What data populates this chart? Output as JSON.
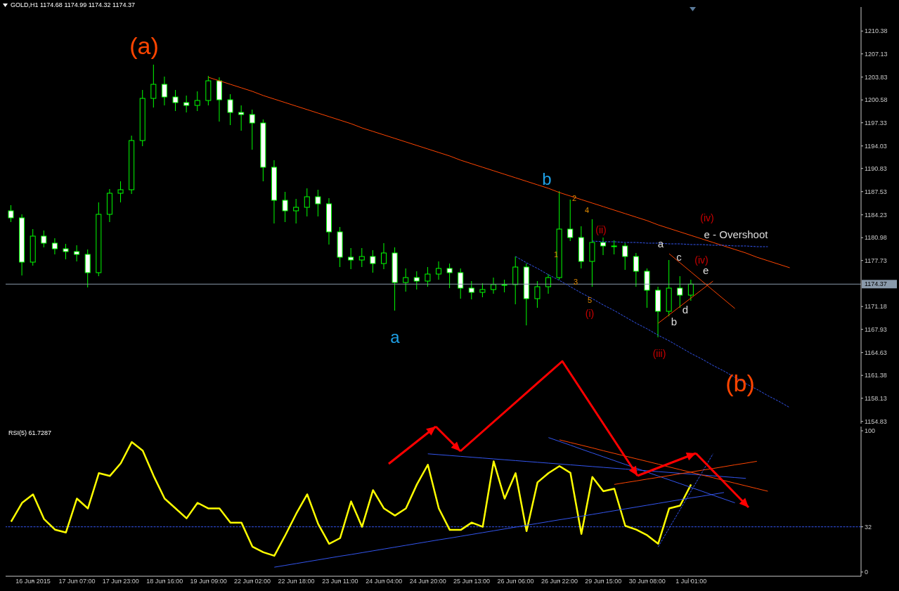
{
  "chart_data": [
    {
      "type": "candlestick",
      "color": "#00ff00",
      "annotations": [
        "GOLD,H1 1174.68 1174.99 1174.32 1174.37",
        "(a)",
        "a",
        "b",
        "(b)",
        "1",
        "2",
        "3",
        "4",
        "5",
        "(i)",
        "(ii)",
        "(iii)",
        "(iv)",
        "(iv)",
        "a",
        "b",
        "c",
        "d",
        {
          "text": "e",
          "x": "1 Jul 01:00",
          "y": 1175.8
        },
        "e - Overshoot"
      ],
      "categories": [
        null,
        null,
        "16 Jun 2015",
        null,
        null,
        null,
        "17 Jun 07:00",
        null,
        null,
        null,
        "17 Jun 23:00",
        null,
        null,
        null,
        "18 Jun 16:00",
        null,
        null,
        null,
        "19 Jun 09:00",
        null,
        null,
        null,
        "22 Jun 02:00",
        null,
        null,
        null,
        "22 Jun 18:00",
        null,
        null,
        null,
        "23 Jun 11:00",
        null,
        null,
        null,
        "24 Jun 04:00",
        null,
        null,
        null,
        "24 Jun 20:00",
        null,
        null,
        null,
        "25 Jun 13:00",
        null,
        null,
        null,
        "26 Jun 06:00",
        null,
        null,
        null,
        "26 Jun 22:00",
        null,
        null,
        null,
        "29 Jun 15:00",
        null,
        null,
        null,
        "30 Jun 08:00",
        null,
        null,
        null,
        "1 Jul 01:00",
        null,
        null,
        null,
        null,
        null,
        null,
        null,
        null,
        null,
        null,
        null,
        null,
        null,
        null,
        null
      ],
      "ohlc": [
        [
          1184.8,
          1185.6,
          1183.2,
          1183.8
        ],
        [
          1183.8,
          1184.3,
          1175.6,
          1177.5
        ],
        [
          1177.5,
          1182.2,
          1177.0,
          1181.2
        ],
        [
          1181.2,
          1182.0,
          1179.6,
          1180.2
        ],
        [
          1180.2,
          1180.9,
          1178.6,
          1179.4
        ],
        [
          1179.4,
          1180.1,
          1177.9,
          1179.0
        ],
        [
          1179.0,
          1179.9,
          1177.6,
          1178.6
        ],
        [
          1178.6,
          1179.3,
          1173.9,
          1176.0
        ],
        [
          1176.0,
          1186.0,
          1175.5,
          1184.3
        ],
        [
          1184.3,
          1187.9,
          1183.2,
          1187.3
        ],
        [
          1187.3,
          1189.0,
          1186.0,
          1187.8
        ],
        [
          1187.8,
          1195.5,
          1187.2,
          1194.8
        ],
        [
          1194.8,
          1202.0,
          1194.0,
          1200.8
        ],
        [
          1200.8,
          1205.6,
          1199.5,
          1202.8
        ],
        [
          1202.8,
          1203.9,
          1199.8,
          1201.0
        ],
        [
          1201.0,
          1202.0,
          1199.0,
          1200.2
        ],
        [
          1200.2,
          1201.2,
          1198.8,
          1199.8
        ],
        [
          1199.8,
          1201.8,
          1199.0,
          1200.5
        ],
        [
          1200.5,
          1204.0,
          1199.8,
          1203.3
        ],
        [
          1203.3,
          1203.8,
          1197.5,
          1200.6
        ],
        [
          1200.6,
          1201.4,
          1197.0,
          1198.8
        ],
        [
          1198.8,
          1199.8,
          1196.2,
          1198.5
        ],
        [
          1198.5,
          1199.2,
          1193.5,
          1197.3
        ],
        [
          1197.3,
          1197.8,
          1189.0,
          1191.0
        ],
        [
          1191.0,
          1192.0,
          1183.0,
          1186.3
        ],
        [
          1186.3,
          1187.5,
          1183.2,
          1184.8
        ],
        [
          1184.8,
          1186.5,
          1183.0,
          1185.3
        ],
        [
          1185.3,
          1188.0,
          1184.0,
          1186.8
        ],
        [
          1186.8,
          1187.8,
          1184.0,
          1185.8
        ],
        [
          1185.8,
          1186.6,
          1180.0,
          1181.8
        ],
        [
          1181.8,
          1182.5,
          1176.8,
          1178.2
        ],
        [
          1178.2,
          1179.5,
          1176.5,
          1177.8
        ],
        [
          1177.8,
          1179.5,
          1176.8,
          1178.3
        ],
        [
          1178.3,
          1179.2,
          1176.0,
          1177.3
        ],
        [
          1177.3,
          1180.2,
          1176.5,
          1178.8
        ],
        [
          1178.8,
          1179.6,
          1170.6,
          1174.6
        ],
        [
          1174.6,
          1176.6,
          1173.3,
          1175.3
        ],
        [
          1175.3,
          1176.2,
          1173.6,
          1174.8
        ],
        [
          1174.8,
          1176.8,
          1174.0,
          1175.8
        ],
        [
          1175.8,
          1177.6,
          1175.0,
          1176.6
        ],
        [
          1176.6,
          1177.3,
          1173.8,
          1176.0
        ],
        [
          1176.0,
          1176.6,
          1172.3,
          1173.8
        ],
        [
          1173.8,
          1174.8,
          1172.2,
          1173.2
        ],
        [
          1173.2,
          1174.5,
          1172.5,
          1173.6
        ],
        [
          1173.6,
          1175.3,
          1173.0,
          1174.3
        ],
        [
          1174.3,
          1175.0,
          1173.2,
          1174.3
        ],
        [
          1174.3,
          1178.3,
          1171.5,
          1176.8
        ],
        [
          1176.8,
          1177.3,
          1168.5,
          1172.3
        ],
        [
          1172.3,
          1174.8,
          1171.0,
          1174.0
        ],
        [
          1174.0,
          1175.8,
          1173.0,
          1175.3
        ],
        [
          1175.3,
          1187.6,
          1175.0,
          1182.2
        ],
        [
          1182.2,
          1186.4,
          1180.5,
          1181.0
        ],
        [
          1181.0,
          1182.6,
          1176.6,
          1177.6
        ],
        [
          1177.6,
          1183.6,
          1174.0,
          1180.3
        ],
        [
          1180.3,
          1181.0,
          1178.5,
          1179.8
        ],
        [
          1179.8,
          1180.6,
          1178.6,
          1179.8
        ],
        [
          1179.8,
          1180.2,
          1176.4,
          1178.3
        ],
        [
          1178.3,
          1178.8,
          1174.0,
          1176.2
        ],
        [
          1176.2,
          1176.6,
          1171.0,
          1173.5
        ],
        [
          1173.5,
          1174.0,
          1166.8,
          1170.5
        ],
        [
          1170.5,
          1177.8,
          1169.8,
          1173.8
        ],
        [
          1173.8,
          1175.5,
          1171.0,
          1172.8
        ],
        [
          1172.8,
          1175.0,
          1172.0,
          1174.37
        ],
        null,
        null,
        null,
        null,
        null,
        null,
        null,
        null,
        null,
        null,
        null,
        null,
        null,
        null,
        null
      ],
      "series": [
        {
          "type": "line",
          "color": "#ff4500",
          "values": [
            null,
            null,
            null,
            null,
            null,
            null,
            null,
            null,
            null,
            null,
            null,
            null,
            null,
            null,
            null,
            null,
            null,
            null,
            1203.8,
            1203.3,
            1202.8,
            1202.3,
            1201.8,
            1201.2,
            1200.7,
            1200.2,
            1199.7,
            1199.2,
            1198.7,
            1198.2,
            1197.7,
            1197.2,
            1196.6,
            1196.1,
            1195.6,
            1195.1,
            1194.6,
            1194.1,
            1193.6,
            1193.1,
            1192.6,
            1192.0,
            1191.5,
            1191.0,
            1190.5,
            1190.0,
            1189.5,
            1189.0,
            1188.5,
            1188.0,
            1187.4,
            1186.9,
            1186.4,
            1185.9,
            1185.4,
            1184.9,
            1184.4,
            1183.9,
            1183.4,
            1182.8,
            1182.3,
            1181.8,
            1181.3,
            1180.8,
            1180.3,
            1179.8,
            1179.3,
            1178.8,
            1178.2,
            1177.7,
            1177.2,
            1176.7,
            null,
            null,
            null,
            null,
            null,
            null
          ]
        },
        {
          "type": "line",
          "color": "#3355ee",
          "line_style": "dashed",
          "values": [
            null,
            null,
            null,
            null,
            null,
            null,
            null,
            null,
            null,
            null,
            null,
            null,
            null,
            null,
            null,
            null,
            null,
            null,
            null,
            null,
            null,
            null,
            null,
            null,
            null,
            null,
            null,
            null,
            null,
            null,
            null,
            null,
            null,
            null,
            null,
            null,
            null,
            null,
            null,
            null,
            null,
            null,
            null,
            null,
            null,
            null,
            1178.3,
            1177.4,
            1176.6,
            1175.7,
            1174.9,
            1174.0,
            1173.1,
            1172.3,
            1171.4,
            1170.6,
            1169.7,
            1168.8,
            1168.0,
            1167.1,
            1166.3,
            1165.4,
            1164.5,
            1163.7,
            1162.8,
            1162.0,
            1161.1,
            1160.2,
            1159.4,
            1158.5,
            1157.7,
            1156.8,
            null,
            null,
            null,
            null,
            null,
            null
          ]
        },
        {
          "type": "line",
          "color": "#3355ee",
          "line_style": "dashed",
          "values": [
            null,
            null,
            null,
            null,
            null,
            null,
            null,
            null,
            null,
            null,
            null,
            null,
            null,
            null,
            null,
            null,
            null,
            null,
            null,
            null,
            null,
            null,
            null,
            null,
            null,
            null,
            null,
            null,
            null,
            null,
            null,
            null,
            null,
            null,
            null,
            null,
            null,
            null,
            null,
            null,
            null,
            null,
            null,
            null,
            null,
            null,
            null,
            null,
            null,
            null,
            null,
            null,
            null,
            1180.5,
            1180.4,
            1180.4,
            1180.3,
            1180.3,
            1180.2,
            1180.2,
            1180.1,
            1180.1,
            1180.0,
            1180.0,
            1179.9,
            1179.9,
            1179.8,
            1179.8,
            1179.7,
            1179.7,
            null,
            null,
            null,
            null,
            null,
            null,
            null,
            null
          ]
        },
        {
          "type": "line",
          "color": "#ff4500",
          "values": [
            null,
            null,
            null,
            null,
            null,
            null,
            null,
            null,
            null,
            null,
            null,
            null,
            null,
            null,
            null,
            null,
            null,
            null,
            null,
            null,
            null,
            null,
            null,
            null,
            null,
            null,
            null,
            null,
            null,
            null,
            null,
            null,
            null,
            null,
            null,
            null,
            null,
            null,
            null,
            null,
            null,
            null,
            null,
            null,
            null,
            null,
            null,
            null,
            null,
            null,
            null,
            null,
            null,
            null,
            null,
            null,
            null,
            null,
            null,
            null,
            1178.7,
            1177.4,
            1176.1,
            1174.8,
            1173.5,
            1172.2,
            1170.9,
            null,
            null,
            null,
            null,
            null,
            null,
            null,
            null,
            null,
            null,
            null
          ]
        },
        {
          "type": "line",
          "color": "#ff4500",
          "values": [
            null,
            null,
            null,
            null,
            null,
            null,
            null,
            null,
            null,
            null,
            null,
            null,
            null,
            null,
            null,
            null,
            null,
            null,
            null,
            null,
            null,
            null,
            null,
            null,
            null,
            null,
            null,
            null,
            null,
            null,
            null,
            null,
            null,
            null,
            null,
            null,
            null,
            null,
            null,
            null,
            null,
            null,
            null,
            null,
            null,
            null,
            null,
            null,
            null,
            null,
            null,
            null,
            null,
            null,
            null,
            null,
            null,
            null,
            null,
            1168.8,
            1170.0,
            1171.2,
            1172.4,
            1173.6,
            1174.8,
            null,
            null,
            null,
            null,
            null,
            null,
            null,
            null,
            null,
            null,
            null,
            null,
            null
          ]
        }
      ],
      "ref_lines": [
        {
          "axis": "y",
          "value": 1174.37,
          "label": "1174.37",
          "color": "#8a9aab"
        }
      ],
      "ylim": [
        1154.5,
        1213.8
      ],
      "yticks": [
        1154.83,
        1158.13,
        1161.38,
        1164.63,
        1167.93,
        1171.18,
        1177.73,
        1180.98,
        1184.23,
        1187.53,
        1190.83,
        1194.03,
        1197.33,
        1200.58,
        1203.83,
        1207.13,
        1210.38
      ],
      "tick_labels": "y",
      "grid": false,
      "legend": false
    },
    {
      "type": "line",
      "title": "RSI(5) 61.7287",
      "categories": [
        null,
        null,
        "16 Jun 2015",
        null,
        null,
        null,
        "17 Jun 07:00",
        null,
        null,
        null,
        "17 Jun 23:00",
        null,
        null,
        null,
        "18 Jun 16:00",
        null,
        null,
        null,
        "19 Jun 09:00",
        null,
        null,
        null,
        "22 Jun 02:00",
        null,
        null,
        null,
        "22 Jun 18:00",
        null,
        null,
        null,
        "23 Jun 11:00",
        null,
        null,
        null,
        "24 Jun 04:00",
        null,
        null,
        null,
        "24 Jun 20:00",
        null,
        null,
        null,
        "25 Jun 13:00",
        null,
        null,
        null,
        "26 Jun 06:00",
        null,
        null,
        null,
        "26 Jun 22:00",
        null,
        null,
        null,
        "29 Jun 15:00",
        null,
        null,
        null,
        "30 Jun 08:00",
        null,
        null,
        null,
        "1 Jul 01:00",
        null,
        null,
        null,
        null,
        null,
        null,
        null,
        null,
        null,
        null,
        null,
        null,
        null,
        null,
        null
      ],
      "series": [
        {
          "color": "#ffff00",
          "values": [
            35.6,
            49,
            55,
            37.5,
            30,
            28,
            52,
            45,
            70,
            68,
            77,
            92,
            86,
            68,
            52,
            45,
            38,
            49,
            45,
            45,
            35,
            35,
            18,
            14,
            11.5,
            26,
            41.3,
            55,
            34,
            20,
            24,
            50,
            32,
            58,
            45,
            40,
            45,
            62,
            76,
            45,
            29.8,
            29.8,
            35,
            32,
            78.4,
            52,
            70,
            29,
            63.5,
            70,
            75,
            70.2,
            27,
            67.3,
            57.2,
            59,
            32.7,
            30,
            26,
            20,
            45,
            47,
            62,
            null,
            null,
            null,
            null,
            null,
            null,
            null,
            null,
            null,
            null,
            null,
            null,
            null,
            null,
            null
          ]
        },
        {
          "color": "#3355ee",
          "values": [
            null,
            null,
            null,
            null,
            null,
            null,
            null,
            null,
            null,
            null,
            null,
            null,
            null,
            null,
            null,
            null,
            null,
            null,
            null,
            null,
            null,
            null,
            null,
            null,
            3.4,
            4.7,
            6.0,
            7.3,
            8.6,
            9.9,
            11.2,
            12.4,
            13.7,
            15.0,
            16.3,
            17.6,
            18.9,
            20.2,
            21.5,
            22.8,
            24.0,
            25.3,
            26.6,
            27.9,
            29.2,
            30.5,
            31.8,
            33.1,
            34.4,
            35.7,
            37.0,
            38.2,
            39.5,
            40.8,
            42.1,
            43.4,
            44.7,
            46.0,
            47.3,
            48.6,
            49.9,
            51.2,
            52.5,
            53.7,
            55.0,
            56.3,
            null,
            null,
            null,
            null,
            null,
            null,
            null,
            null,
            null,
            null,
            null,
            null
          ]
        },
        {
          "color": "#3355ee",
          "values": [
            null,
            null,
            null,
            null,
            null,
            null,
            null,
            null,
            null,
            null,
            null,
            null,
            null,
            null,
            null,
            null,
            null,
            null,
            null,
            null,
            null,
            null,
            null,
            null,
            null,
            null,
            null,
            null,
            null,
            null,
            null,
            null,
            null,
            null,
            null,
            null,
            null,
            null,
            83.7,
            83.1,
            82.5,
            81.9,
            81.3,
            80.7,
            80.1,
            79.5,
            78.9,
            78.3,
            77.7,
            77.1,
            76.5,
            75.9,
            75.3,
            74.7,
            74.1,
            73.5,
            72.9,
            72.3,
            71.7,
            71.1,
            70.5,
            69.9,
            69.3,
            68.7,
            68.1,
            67.5,
            66.9,
            66.3,
            null,
            null,
            null,
            null,
            null,
            null,
            null,
            null,
            null,
            null
          ]
        },
        {
          "color": "#3355ee",
          "values": [
            null,
            null,
            null,
            null,
            null,
            null,
            null,
            null,
            null,
            null,
            null,
            null,
            null,
            null,
            null,
            null,
            null,
            null,
            null,
            null,
            null,
            null,
            null,
            null,
            null,
            null,
            null,
            null,
            null,
            null,
            null,
            null,
            null,
            null,
            null,
            null,
            null,
            null,
            null,
            null,
            null,
            null,
            null,
            null,
            null,
            null,
            null,
            null,
            null,
            95.2,
            92.5,
            89.8,
            87.0,
            84.3,
            81.6,
            78.9,
            76.2,
            73.5,
            70.7,
            68.0,
            65.3,
            62.6,
            59.9,
            57.2,
            54.4,
            51.7,
            49.0,
            null,
            null,
            null,
            null,
            null,
            null,
            null,
            null,
            null,
            null,
            null
          ]
        },
        {
          "color": "#ff4500",
          "values": [
            null,
            null,
            null,
            null,
            null,
            null,
            null,
            null,
            null,
            null,
            null,
            null,
            null,
            null,
            null,
            null,
            null,
            null,
            null,
            null,
            null,
            null,
            null,
            null,
            null,
            null,
            null,
            null,
            null,
            null,
            null,
            null,
            null,
            null,
            null,
            null,
            null,
            null,
            null,
            null,
            null,
            null,
            null,
            null,
            null,
            null,
            null,
            null,
            null,
            null,
            93.6,
            91.7,
            89.8,
            87.9,
            85.9,
            84.0,
            82.1,
            80.2,
            78.3,
            76.4,
            74.4,
            72.5,
            70.6,
            68.7,
            66.8,
            64.8,
            62.9,
            61.0,
            59.1,
            57.2,
            null,
            null,
            null,
            null,
            null,
            null,
            null,
            null
          ]
        },
        {
          "color": "#ff4500",
          "values": [
            null,
            null,
            null,
            null,
            null,
            null,
            null,
            null,
            null,
            null,
            null,
            null,
            null,
            null,
            null,
            null,
            null,
            null,
            null,
            null,
            null,
            null,
            null,
            null,
            null,
            null,
            null,
            null,
            null,
            null,
            null,
            null,
            null,
            null,
            null,
            null,
            null,
            null,
            null,
            null,
            null,
            null,
            null,
            null,
            null,
            null,
            null,
            null,
            null,
            null,
            null,
            null,
            null,
            null,
            null,
            62.0,
            63.3,
            64.5,
            65.8,
            67.0,
            68.3,
            69.6,
            70.8,
            72.1,
            73.3,
            74.6,
            75.9,
            77.1,
            78.4,
            null,
            null,
            null,
            null,
            null,
            null,
            null,
            null,
            null
          ]
        },
        {
          "color": "#3355ee",
          "line_style": "dashed",
          "values": [
            null,
            null,
            null,
            null,
            null,
            null,
            null,
            null,
            null,
            null,
            null,
            null,
            null,
            null,
            null,
            null,
            null,
            null,
            null,
            null,
            null,
            null,
            null,
            null,
            null,
            null,
            null,
            null,
            null,
            null,
            null,
            null,
            null,
            null,
            null,
            null,
            null,
            null,
            null,
            null,
            null,
            null,
            null,
            null,
            null,
            null,
            null,
            null,
            null,
            null,
            null,
            null,
            null,
            null,
            null,
            null,
            null,
            null,
            null,
            17.8,
            31.0,
            44.2,
            57.3,
            70.5,
            83.7,
            null,
            null,
            null,
            null,
            null,
            null,
            null,
            null,
            null,
            null,
            null,
            null,
            null
          ]
        }
      ],
      "ref_lines": [
        {
          "axis": "y",
          "value": 32,
          "color": "#3355ee",
          "line_style": "dashed"
        }
      ],
      "ylim": [
        -3,
        103
      ],
      "yticks": [
        0,
        32,
        100
      ],
      "grid": false,
      "legend": false
    }
  ]
}
